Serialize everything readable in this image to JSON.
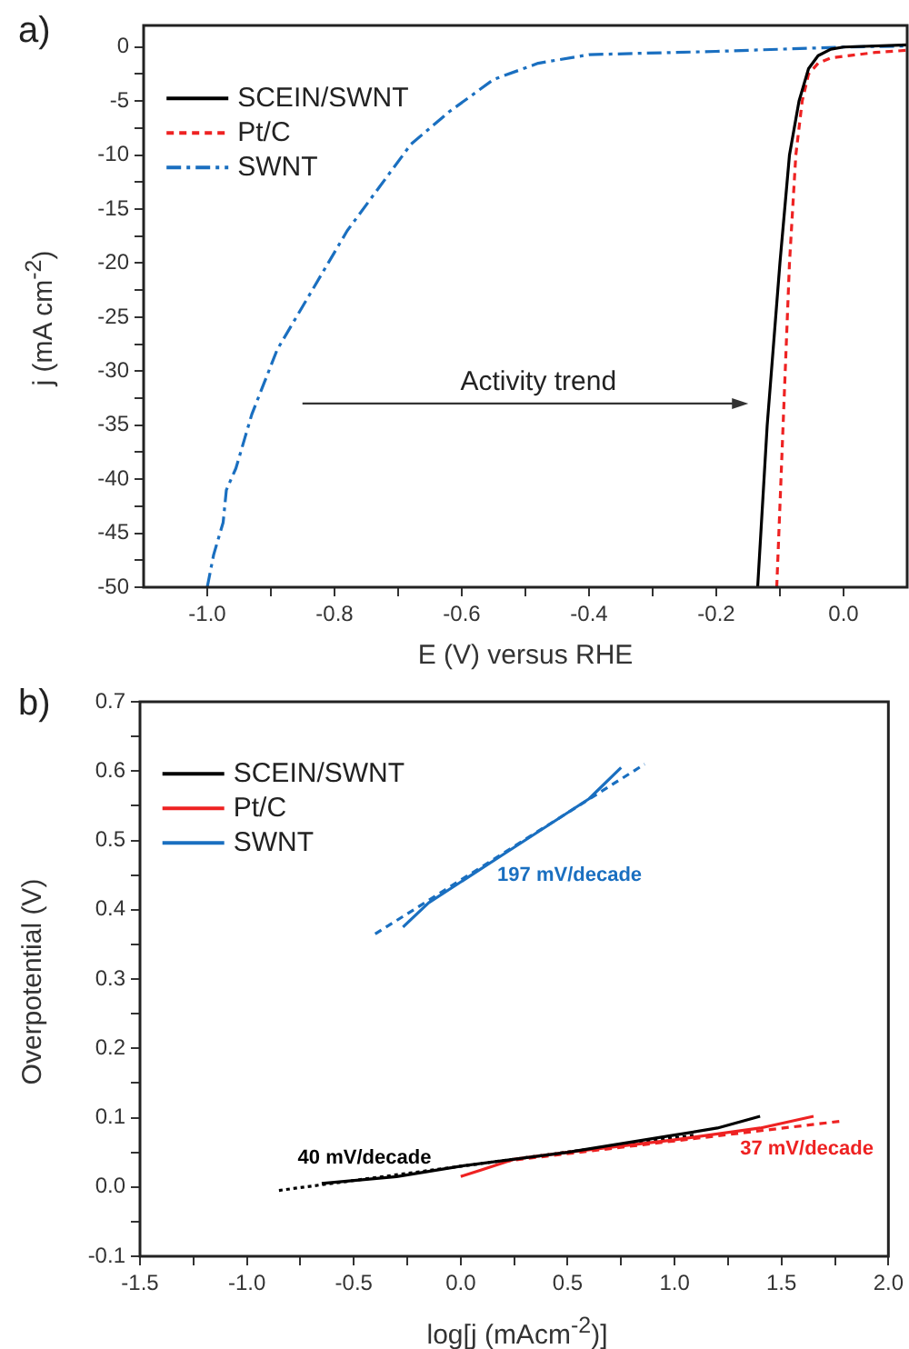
{
  "chart_data": [
    {
      "type": "line",
      "title": "a)",
      "xlabel": "E (V) versus RHE",
      "ylabel": "j (mA cm$^{-2}$)",
      "xlim": [
        -1.1,
        0.1
      ],
      "ylim": [
        -50,
        2
      ],
      "xticks": [
        {
          "value": -1,
          "label": "-1.0"
        },
        {
          "value": -0.9,
          "label": null
        },
        -0.8,
        {
          "value": -0.7,
          "label": null
        },
        -0.6,
        {
          "value": -0.5,
          "label": null
        },
        -0.4,
        {
          "value": -0.3,
          "label": null
        },
        -0.2,
        {
          "value": -0.1,
          "label": null
        },
        {
          "value": 0,
          "label": "0.0"
        }
      ],
      "yticks": [
        -50,
        {
          "value": -47.5,
          "label": null
        },
        -45,
        {
          "value": -42.5,
          "label": null
        },
        -40,
        {
          "value": -37.5,
          "label": null
        },
        -35,
        {
          "value": -32.5,
          "label": null
        },
        -30,
        {
          "value": -27.5,
          "label": null
        },
        -25,
        {
          "value": -22.5,
          "label": null
        },
        -20,
        {
          "value": -17.5,
          "label": null
        },
        -15,
        {
          "value": -12.5,
          "label": null
        },
        -10,
        {
          "value": -7.5,
          "label": null
        },
        -5,
        {
          "value": -2.5,
          "label": null
        },
        0
      ],
      "legend": "top left",
      "grid": false,
      "marker": "none",
      "annotations": [
        "Activity trend"
      ],
      "series": [
        {
          "name": "SCEIN/SWNT",
          "color": "#000000",
          "line_style": "solid",
          "x": [
            -0.135,
            -0.12,
            -0.1,
            -0.085,
            -0.07,
            -0.055,
            -0.04,
            -0.02,
            0.0,
            0.1
          ],
          "values": [
            -50,
            -35,
            -20,
            -10,
            -5,
            -2,
            -0.8,
            -0.2,
            0,
            0.2
          ]
        },
        {
          "name": "Pt/C",
          "color": "#ee2222",
          "line_style": "dashed",
          "x": [
            -0.105,
            -0.095,
            -0.085,
            -0.075,
            -0.065,
            -0.055,
            -0.04,
            -0.02,
            0.05,
            0.1
          ],
          "values": [
            -50,
            -35,
            -20,
            -10,
            -5,
            -2.5,
            -1.5,
            -1,
            -0.5,
            -0.3
          ]
        },
        {
          "name": "SWNT",
          "color": "#1a6fc0",
          "line_style": "dashdot",
          "x": [
            -1.0,
            -0.99,
            -0.975,
            -0.97,
            -0.955,
            -0.94,
            -0.93,
            -0.91,
            -0.89,
            -0.86,
            -0.82,
            -0.78,
            -0.73,
            -0.68,
            -0.62,
            -0.55,
            -0.48,
            -0.4,
            -0.2,
            0.0,
            0.1
          ],
          "values": [
            -50,
            -47,
            -44,
            -41,
            -39,
            -36,
            -34,
            -31,
            -28,
            -25,
            -21,
            -17,
            -13,
            -9,
            -6,
            -3,
            -1.5,
            -0.7,
            -0.4,
            0,
            0.1
          ]
        }
      ]
    },
    {
      "type": "line",
      "title": "b)",
      "xlabel": "log[j (mAcm$^{-2}$)]",
      "ylabel": "Overpotential (V)",
      "xlim": [
        -1.5,
        2.0
      ],
      "ylim": [
        -0.1,
        0.7
      ],
      "xticks": [
        -1.5,
        {
          "value": -1.25,
          "label": null
        },
        {
          "value": -1,
          "label": "-1.0"
        },
        {
          "value": -0.75,
          "label": null
        },
        -0.5,
        {
          "value": -0.25,
          "label": null
        },
        {
          "value": 0,
          "label": "0.0"
        },
        {
          "value": 0.25,
          "label": null
        },
        0.5,
        {
          "value": 0.75,
          "label": null
        },
        {
          "value": 1,
          "label": "1.0"
        },
        {
          "value": 1.25,
          "label": null
        },
        1.5,
        {
          "value": 1.75,
          "label": null
        },
        {
          "value": 2,
          "label": "2.0"
        }
      ],
      "yticks": [
        -0.1,
        {
          "value": -0.05,
          "label": null
        },
        {
          "value": 0,
          "label": "0.0"
        },
        {
          "value": 0.05,
          "label": null
        },
        0.1,
        {
          "value": 0.15,
          "label": null
        },
        0.2,
        {
          "value": 0.25,
          "label": null
        },
        0.3,
        {
          "value": 0.35,
          "label": null
        },
        0.4,
        {
          "value": 0.45,
          "label": null
        },
        0.5,
        {
          "value": 0.55,
          "label": null
        },
        0.6,
        {
          "value": 0.65,
          "label": null
        },
        0.7
      ],
      "legend": "top left",
      "grid": false,
      "marker": "none",
      "annotations": [
        "197 mV/decade",
        "40 mV/decade",
        "37 mV/decade"
      ],
      "series": [
        {
          "name": "SCEIN/SWNT",
          "color": "#000000",
          "line_style": "solid",
          "x": [
            -0.65,
            -0.3,
            0.0,
            0.5,
            1.0,
            1.2,
            1.4
          ],
          "values": [
            0.005,
            0.015,
            0.03,
            0.05,
            0.075,
            0.085,
            0.102
          ]
        },
        {
          "name": "Pt/C",
          "color": "#ee2222",
          "line_style": "solid",
          "x": [
            0.0,
            0.1,
            0.25,
            0.5,
            1.0,
            1.4,
            1.65
          ],
          "values": [
            0.015,
            0.025,
            0.04,
            0.05,
            0.068,
            0.085,
            0.102
          ]
        },
        {
          "name": "SWNT",
          "color": "#1a6fc0",
          "line_style": "solid",
          "x": [
            -0.27,
            -0.15,
            0.0,
            0.2,
            0.4,
            0.6,
            0.75
          ],
          "values": [
            0.375,
            0.41,
            0.44,
            0.48,
            0.52,
            0.56,
            0.605
          ]
        },
        {
          "color": "#000000",
          "line_style": "dotted",
          "x": [
            -0.85,
            1.1
          ],
          "values": [
            -0.005,
            0.075
          ]
        },
        {
          "color": "#ee2222",
          "line_style": "dashed",
          "x": [
            0.2,
            1.78
          ],
          "values": [
            0.037,
            0.095
          ]
        },
        {
          "color": "#1a6fc0",
          "line_style": "dashed",
          "x": [
            -0.4,
            0.86
          ],
          "values": [
            0.365,
            0.61
          ]
        }
      ]
    }
  ]
}
